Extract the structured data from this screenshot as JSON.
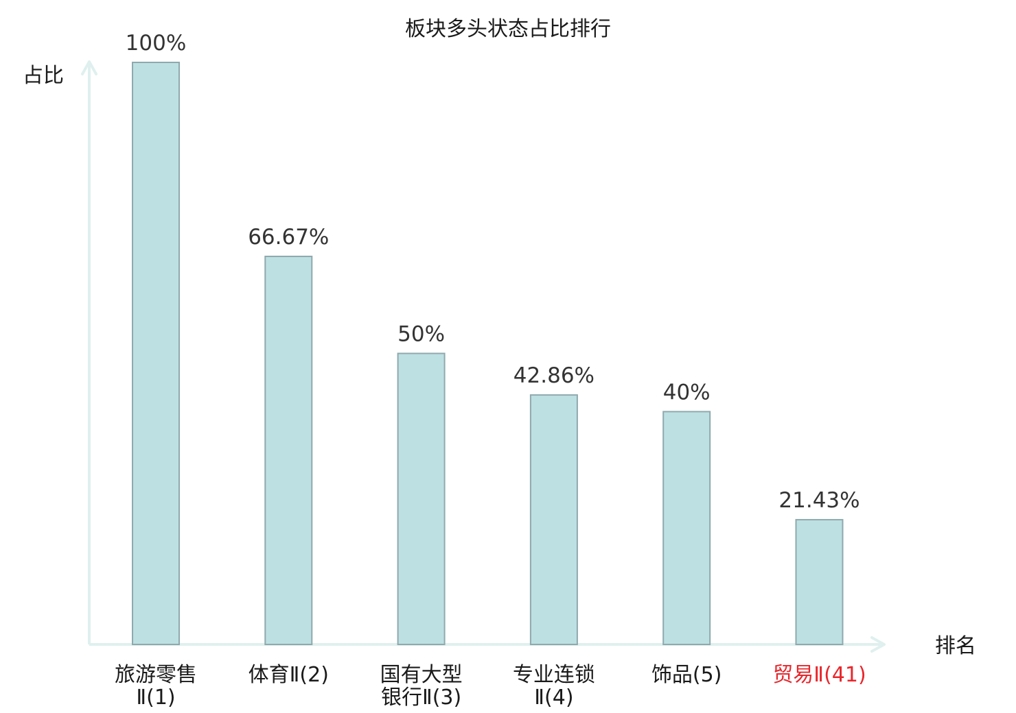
{
  "colors": {
    "bar_fill": "#bde0e3",
    "bar_stroke": "#8fa9ad",
    "axis": "#dff0ee",
    "highlight": "#e8262b"
  },
  "chart_data": {
    "type": "bar",
    "title": "板块多头状态占比排行",
    "ylabel": "占比",
    "xlabel": "排名",
    "ylim": [
      0,
      100
    ],
    "grid": false,
    "categories": [
      {
        "lines": [
          "旅游零售",
          "Ⅱ(1)"
        ],
        "highlight": false
      },
      {
        "lines": [
          "体育Ⅱ(2)"
        ],
        "highlight": false
      },
      {
        "lines": [
          "国有大型",
          "银行Ⅱ(3)"
        ],
        "highlight": false
      },
      {
        "lines": [
          "专业连锁",
          "Ⅱ(4)"
        ],
        "highlight": false
      },
      {
        "lines": [
          "饰品(5)"
        ],
        "highlight": false
      },
      {
        "lines": [
          "贸易Ⅱ(41)"
        ],
        "highlight": true
      }
    ],
    "values": [
      100,
      66.67,
      50,
      42.86,
      40,
      21.43
    ],
    "value_labels": [
      "100%",
      "66.67%",
      "50%",
      "42.86%",
      "40%",
      "21.43%"
    ]
  }
}
